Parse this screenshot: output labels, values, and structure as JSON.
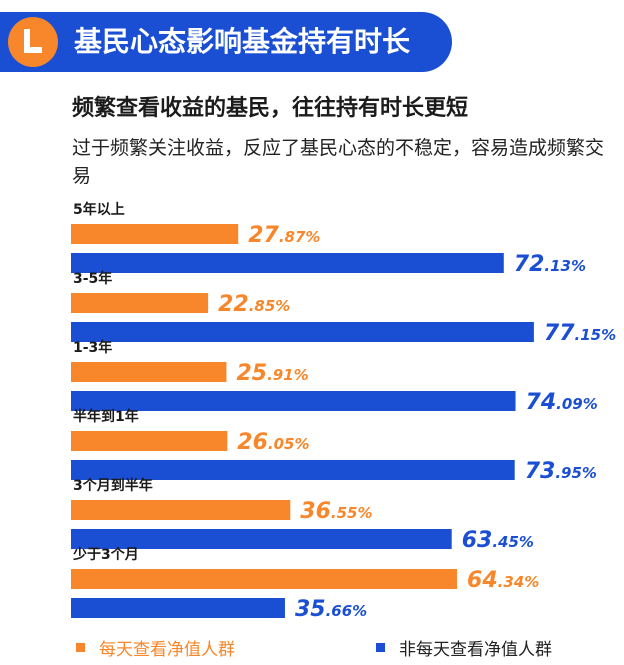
{
  "header": {
    "title": "基民心态影响基金持有时长"
  },
  "subtitle": "频繁查看收益的基民，往往持有时长更短",
  "description": "过于频繁关注收益，反应了基民心态的不稳定，容易造成频繁交易",
  "colors": {
    "orange": "#f7872a",
    "blue": "#1b4fd3",
    "header": "#1b4fd3"
  },
  "chart_data": {
    "type": "bar",
    "orientation": "horizontal",
    "categories": [
      "5年以上",
      "3-5年",
      "1-3年",
      "半年到1年",
      "3个月到半年",
      "少于3个月"
    ],
    "series": [
      {
        "name": "每天查看净值人群",
        "color": "#f7872a",
        "values": [
          27.87,
          22.85,
          25.91,
          26.05,
          36.55,
          64.34
        ]
      },
      {
        "name": "非每天查看净值人群",
        "color": "#1b4fd3",
        "values": [
          72.13,
          77.15,
          74.09,
          73.95,
          63.45,
          35.66
        ]
      }
    ],
    "value_labels": {
      "series_0": [
        [
          "27",
          ".87%"
        ],
        [
          "22",
          ".85%"
        ],
        [
          "25",
          ".91%"
        ],
        [
          "26",
          ".05%"
        ],
        [
          "36",
          ".55%"
        ],
        [
          "64",
          ".34%"
        ]
      ],
      "series_1": [
        [
          "72",
          ".13%"
        ],
        [
          "77",
          ".15%"
        ],
        [
          "74",
          ".09%"
        ],
        [
          "73",
          ".95%"
        ],
        [
          "63",
          ".45%"
        ],
        [
          "35",
          ".66%"
        ]
      ]
    },
    "xlim": [
      0,
      100
    ],
    "grid": false,
    "legend_position": "bottom"
  },
  "legend": [
    "每天查看净值人群",
    "非每天查看净值人群"
  ]
}
